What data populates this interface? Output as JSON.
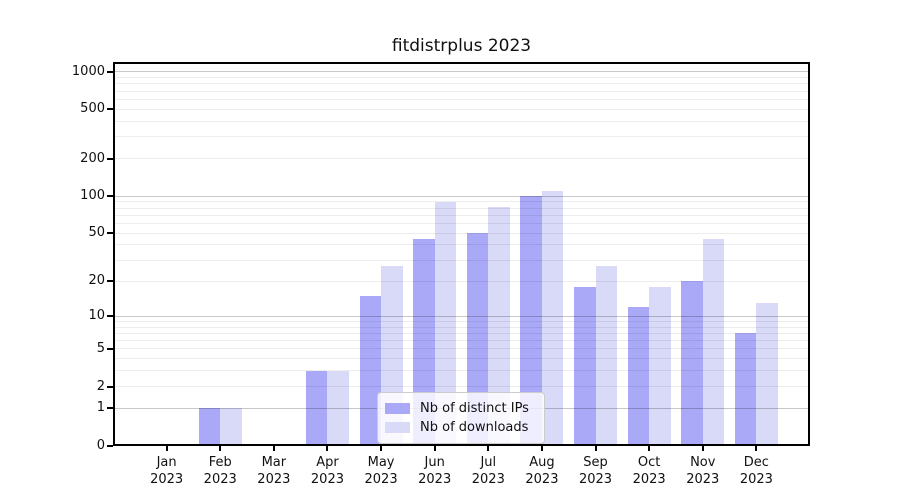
{
  "chart_data": {
    "type": "bar",
    "title": "fitdistrplus 2023",
    "categories": [
      "Jan",
      "Feb",
      "Mar",
      "Apr",
      "May",
      "Jun",
      "Jul",
      "Aug",
      "Sep",
      "Oct",
      "Nov",
      "Dec"
    ],
    "year_label": "2023",
    "series": [
      {
        "name": "Nb of distinct IPs",
        "color": "#a9a9f7",
        "values": [
          0,
          1,
          0,
          3,
          15,
          45,
          50,
          100,
          18,
          12,
          20,
          7
        ]
      },
      {
        "name": "Nb of downloads",
        "color": "#d9d9f8",
        "values": [
          0,
          1,
          0,
          3,
          27,
          90,
          82,
          110,
          27,
          18,
          45,
          13
        ]
      }
    ],
    "yscale": "log1p",
    "ylim": [
      0,
      1200
    ],
    "yticks": [
      0,
      1,
      2,
      5,
      10,
      20,
      50,
      100,
      200,
      500,
      1000
    ],
    "ytick_labels": [
      "0",
      "1",
      "2",
      "5",
      "10",
      "20",
      "50",
      "100",
      "200",
      "500",
      "1000"
    ],
    "major_grid_values": [
      1,
      10,
      100,
      1000
    ],
    "grid": "horizontal major + minor log gridlines drawn over bars",
    "legend_position": "lower center"
  },
  "colors": {
    "background": "#ffffff",
    "axis": "#000000",
    "text": "#111111",
    "bar_distinct_ips": "#a9a9f7",
    "bar_downloads": "#d9d9f8",
    "major_grid": "rgba(0,0,0,0.22)",
    "minor_grid": "rgba(0,0,0,0.07)",
    "legend_background": "rgba(255,255,255,0.8)",
    "legend_border": "#cccccc"
  }
}
